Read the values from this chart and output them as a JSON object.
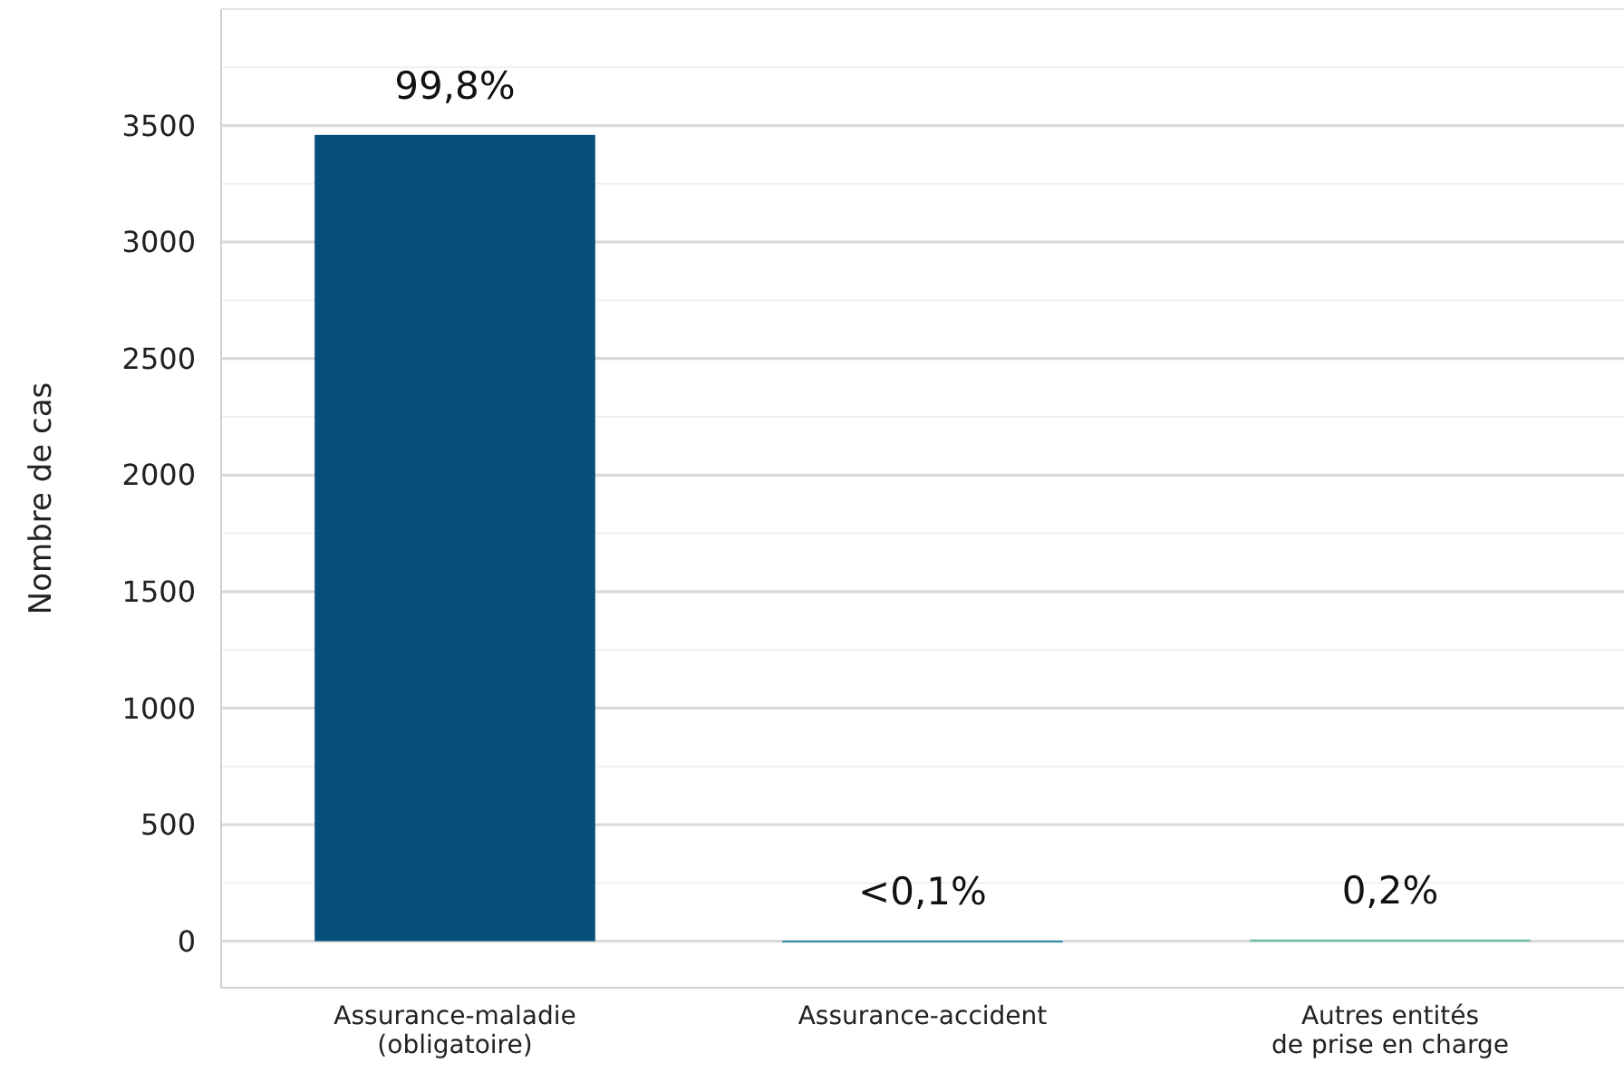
{
  "chart_data": {
    "type": "bar",
    "ylabel": "Nombre de cas",
    "categories": [
      "Assurance-maladie\n(obligatoire)",
      "Assurance-accident",
      "Autres entités\nde prise en charge"
    ],
    "values": [
      3460,
      2,
      7
    ],
    "colors": [
      "#054f7a",
      "#2f8fa6",
      "#5fb8a0"
    ],
    "annotations": [
      {
        "text": "99,8%",
        "x": "Assurance-maladie\n(obligatoire)",
        "y": 3460
      },
      {
        "text": "<0,1%",
        "x": "Assurance-accident",
        "y": 2
      },
      {
        "text": "0,2%",
        "x": "Autres entités\nde prise en charge",
        "y": 7
      }
    ],
    "ylim": [
      -200,
      4000
    ],
    "yticks": [
      0,
      {
        "value": 250,
        "label": null
      },
      500,
      {
        "value": 750,
        "label": null
      },
      1000,
      {
        "value": 1250,
        "label": null
      },
      1500,
      {
        "value": 1750,
        "label": null
      },
      2000,
      {
        "value": 2250,
        "label": null
      },
      2500,
      {
        "value": 2750,
        "label": null
      },
      3000,
      {
        "value": 3250,
        "label": null
      },
      3500,
      {
        "value": 3750,
        "label": null
      }
    ],
    "grid": "y"
  }
}
